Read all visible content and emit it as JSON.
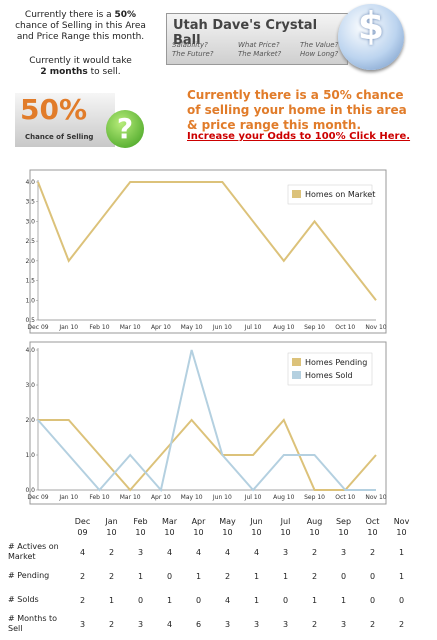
{
  "header": {
    "intro_before": "Currently there is a",
    "intro_bold": "50%",
    "intro_after": "chance of Selling in this Area and Price Range this month.",
    "time_before": "Currently it would take",
    "time_bold": "2 months",
    "time_after": "to sell."
  },
  "banner": {
    "title": "Utah Dave's Crystal Ball",
    "questions": [
      "Salability?",
      "What Price?",
      "The Value?",
      "The Future?",
      "The Market?",
      "How Long?"
    ],
    "icon": "$"
  },
  "badge": {
    "percent": "50%",
    "caption": "Chance of Selling",
    "icon": "?"
  },
  "message": "Currently there is a 50% chance of selling your home in this area & price range this month.",
  "link": "Increase your Odds to 100% Click Here.",
  "chart_data": [
    {
      "type": "line",
      "categories": [
        "Dec 09",
        "Jan 10",
        "Feb 10",
        "Mar 10",
        "Apr 10",
        "May 10",
        "Jun 10",
        "Jul 10",
        "Aug 10",
        "Sep 10",
        "Oct 10",
        "Nov 10"
      ],
      "series": [
        {
          "name": "Homes on Market",
          "color": "#dcc27a",
          "values": [
            4,
            2,
            3,
            4,
            4,
            4,
            4,
            3,
            2,
            3,
            2,
            1
          ]
        }
      ],
      "ylim": [
        0.5,
        4
      ],
      "yticks": [
        0.5,
        {
          "value": 1,
          "label": "1.0"
        },
        1.5,
        {
          "value": 2,
          "label": "2.0"
        },
        2.5,
        {
          "value": 3,
          "label": "3.0"
        },
        3.5,
        {
          "value": 4,
          "label": "4.0"
        }
      ],
      "grid": false,
      "legend": "top-right"
    },
    {
      "type": "line",
      "categories": [
        "Dec 09",
        "Jan 10",
        "Feb 10",
        "Mar 10",
        "Apr 10",
        "May 10",
        "Jun 10",
        "Jul 10",
        "Aug 10",
        "Sep 10",
        "Oct 10",
        "Nov 10"
      ],
      "series": [
        {
          "name": "Homes Pending",
          "color": "#dcc27a",
          "values": [
            2,
            2,
            1,
            0,
            1,
            2,
            1,
            1,
            2,
            0,
            0,
            1
          ]
        },
        {
          "name": "Homes Sold",
          "color": "#b4d0e0",
          "values": [
            2,
            1,
            0,
            1,
            0,
            4,
            1,
            0,
            1,
            1,
            0,
            0
          ]
        }
      ],
      "ylim": [
        0,
        4
      ],
      "yticks": [
        {
          "value": 0,
          "label": "0.0"
        },
        {
          "value": 1,
          "label": "1.0"
        },
        {
          "value": 2,
          "label": "2.0"
        },
        {
          "value": 3,
          "label": "3.0"
        },
        {
          "value": 4,
          "label": "4.0"
        }
      ],
      "grid": false,
      "legend": "top-right"
    }
  ],
  "table": {
    "columns": [
      "Dec 09",
      "Jan 10",
      "Feb 10",
      "Mar 10",
      "Apr 10",
      "May 10",
      "Jun 10",
      "Jul 10",
      "Aug 10",
      "Sep 10",
      "Oct 10",
      "Nov 10"
    ],
    "rows": [
      {
        "label": "# Actives on Market",
        "values": [
          4,
          2,
          3,
          4,
          4,
          4,
          4,
          3,
          2,
          3,
          2,
          1
        ]
      },
      {
        "label": "# Pending",
        "values": [
          2,
          2,
          1,
          0,
          1,
          2,
          1,
          1,
          2,
          0,
          0,
          1
        ]
      },
      {
        "label": "# Solds",
        "values": [
          2,
          1,
          0,
          1,
          0,
          4,
          1,
          0,
          1,
          1,
          0,
          0
        ]
      },
      {
        "label": "# Months to Sell",
        "values": [
          3,
          2,
          3,
          4,
          6,
          3,
          3,
          3,
          2,
          3,
          2,
          2
        ]
      }
    ]
  }
}
